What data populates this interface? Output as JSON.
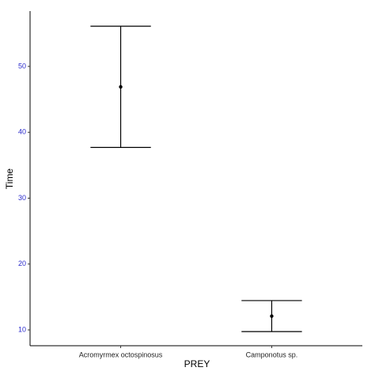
{
  "chart_data": {
    "type": "errorbar",
    "x_label": "PREY",
    "y_label": "Time",
    "categories": [
      "Acromyrmex octospinosus",
      "Camponotus sp."
    ],
    "values": [
      46.9,
      12.1
    ],
    "errors": [
      9.2,
      2.35
    ],
    "ylim": [
      7.6,
      58.4
    ],
    "yticks": [
      10,
      20,
      30,
      40,
      50
    ],
    "color": "#000000",
    "grid": false
  }
}
